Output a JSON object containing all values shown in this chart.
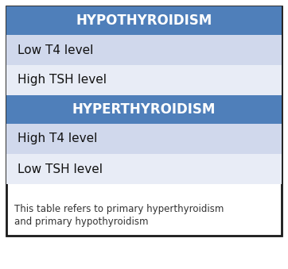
{
  "title1": "HYPOTHYROIDISM",
  "title2": "HYPERTHYROIDISM",
  "rows_hypo": [
    "Low T4 level",
    "High TSH level"
  ],
  "rows_hyper": [
    "High T4 level",
    "Low TSH level"
  ],
  "footnote": "This table refers to primary hyperthyroidism\nand primary hypothyroidism",
  "header_bg": "#4f7fba",
  "header_text": "#ffffff",
  "row_bg_alt1": "#d0d8ec",
  "row_bg_alt2": "#e8ecf6",
  "row_text": "#111111",
  "outer_bg": "#ffffff",
  "border_color": "#1a1a1a",
  "footnote_color": "#333333",
  "footnote_fontsize": 8.5,
  "row_fontsize": 11,
  "header_fontsize": 12,
  "fig_width": 3.62,
  "fig_height": 3.39,
  "dpi": 100
}
